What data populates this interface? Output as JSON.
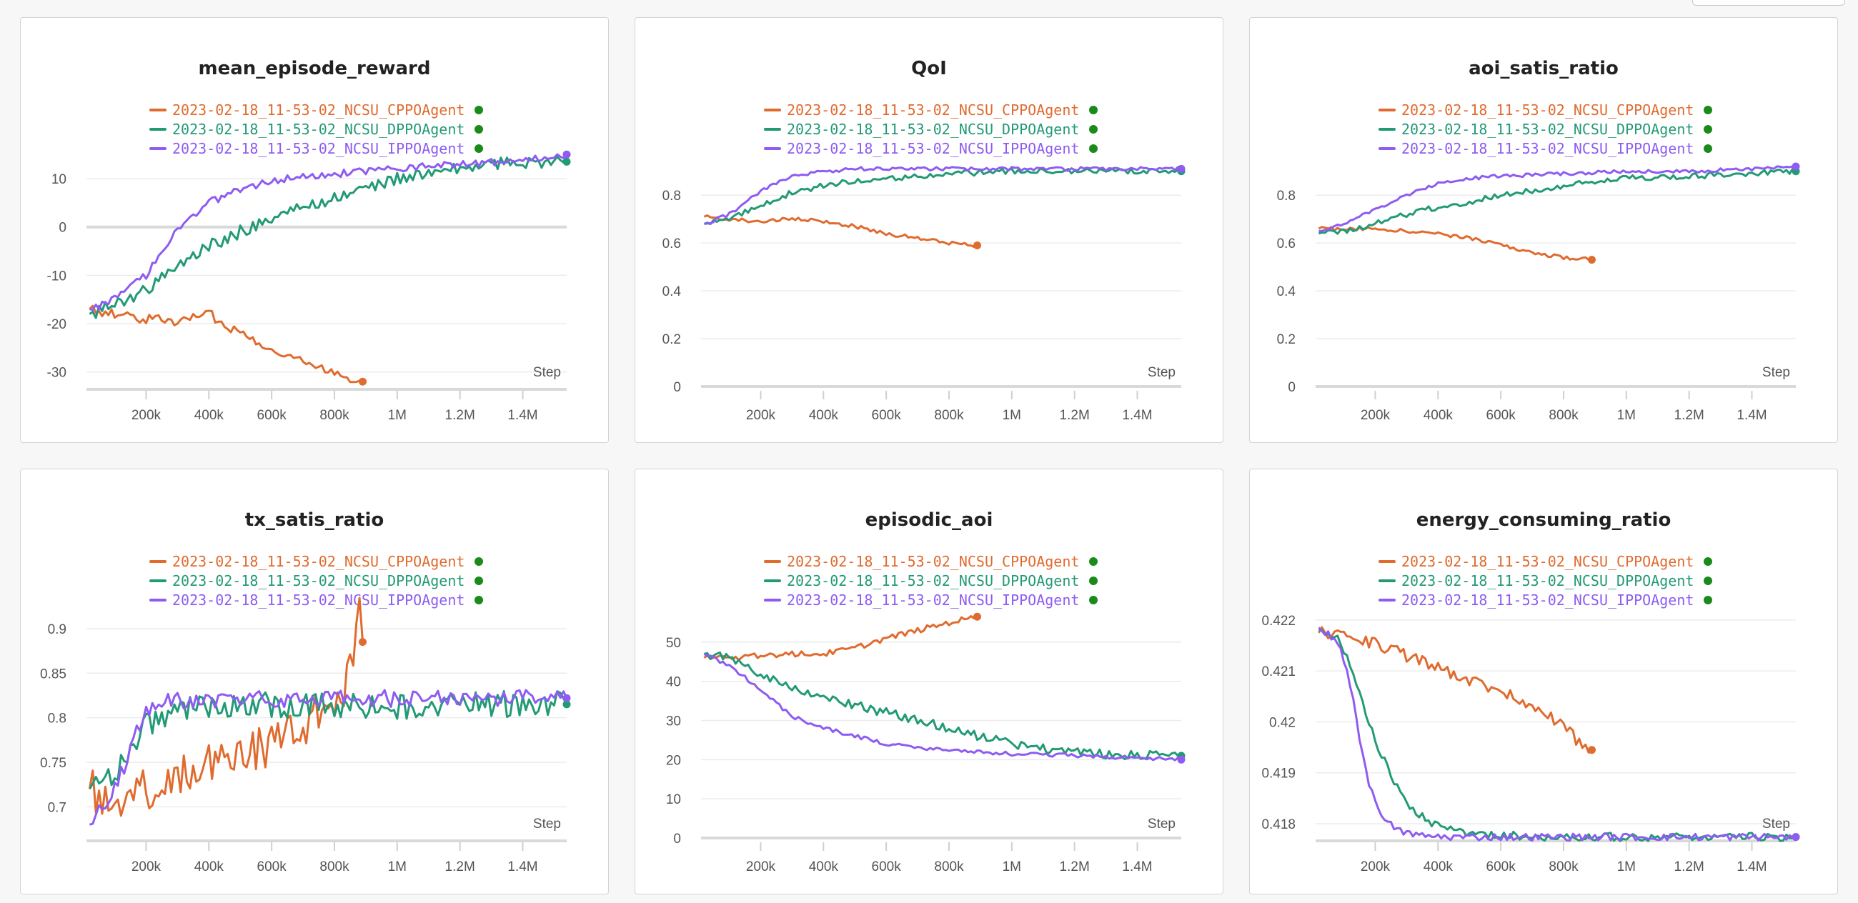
{
  "colors": {
    "cppo": "#e06b2e",
    "dppo": "#239a76",
    "ippo": "#8e5cf2",
    "live_dot": "#1a8a1a"
  },
  "legend": [
    {
      "key": "cppo",
      "label": "2023-02-18_11-53-02_NCSU_CPPOAgent"
    },
    {
      "key": "dppo",
      "label": "2023-02-18_11-53-02_NCSU_DPPOAgent"
    },
    {
      "key": "ippo",
      "label": "2023-02-18_11-53-02_NCSU_IPPOAgent"
    }
  ],
  "x_axis_label": "Step",
  "x_ticks": [
    {
      "v": 200000,
      "label": "200k"
    },
    {
      "v": 400000,
      "label": "400k"
    },
    {
      "v": 600000,
      "label": "600k"
    },
    {
      "v": 800000,
      "label": "800k"
    },
    {
      "v": 1000000,
      "label": "1M"
    },
    {
      "v": 1200000,
      "label": "1.2M"
    },
    {
      "v": 1400000,
      "label": "1.4M"
    }
  ],
  "chart_data": [
    {
      "type": "line",
      "title": "mean_episode_reward",
      "xlim": [
        10000,
        1540000
      ],
      "ylim": [
        -33,
        14
      ],
      "y_ticks": [
        {
          "v": -30,
          "label": "-30"
        },
        {
          "v": -20,
          "label": "-20"
        },
        {
          "v": -10,
          "label": "-10"
        },
        {
          "v": 0,
          "label": "0"
        },
        {
          "v": 10,
          "label": "10"
        }
      ],
      "series": [
        {
          "name": "2023-02-18_11-53-02_NCSU_CPPOAgent",
          "key": "cppo",
          "noise": 1.0,
          "x": [
            20000,
            100000,
            200000,
            300000,
            400000,
            500000,
            600000,
            700000,
            800000,
            890000
          ],
          "y": [
            -17,
            -18,
            -19,
            -19.5,
            -18,
            -22,
            -25,
            -28,
            -30,
            -32
          ]
        },
        {
          "name": "2023-02-18_11-53-02_NCSU_DPPOAgent",
          "key": "dppo",
          "noise": 1.3,
          "x": [
            20000,
            100000,
            200000,
            300000,
            400000,
            500000,
            600000,
            700000,
            800000,
            900000,
            1000000,
            1100000,
            1200000,
            1300000,
            1400000,
            1540000
          ],
          "y": [
            -18,
            -16,
            -13,
            -8,
            -4,
            -1,
            2,
            4,
            6,
            8,
            10,
            11,
            12,
            13,
            13.5,
            13.5
          ]
        },
        {
          "name": "2023-02-18_11-53-02_NCSU_IPPOAgent",
          "key": "ippo",
          "noise": 0.8,
          "x": [
            20000,
            100000,
            200000,
            300000,
            400000,
            500000,
            600000,
            700000,
            800000,
            900000,
            1000000,
            1100000,
            1200000,
            1300000,
            1400000,
            1540000
          ],
          "y": [
            -17,
            -15,
            -10,
            0,
            5,
            8,
            9.5,
            10.5,
            11,
            11.5,
            12,
            12.5,
            13,
            13.5,
            14,
            15
          ]
        }
      ]
    },
    {
      "type": "line",
      "title": "QoI",
      "xlim": [
        10000,
        1540000
      ],
      "ylim": [
        0,
        0.95
      ],
      "y_ticks": [
        {
          "v": 0,
          "label": "0"
        },
        {
          "v": 0.2,
          "label": "0.2"
        },
        {
          "v": 0.4,
          "label": "0.4"
        },
        {
          "v": 0.6,
          "label": "0.6"
        },
        {
          "v": 0.8,
          "label": "0.8"
        }
      ],
      "series": [
        {
          "name": "2023-02-18_11-53-02_NCSU_CPPOAgent",
          "key": "cppo",
          "noise": 0.008,
          "x": [
            20000,
            100000,
            200000,
            300000,
            400000,
            500000,
            600000,
            700000,
            800000,
            890000
          ],
          "y": [
            0.71,
            0.7,
            0.69,
            0.7,
            0.69,
            0.67,
            0.64,
            0.62,
            0.6,
            0.59
          ]
        },
        {
          "name": "2023-02-18_11-53-02_NCSU_DPPOAgent",
          "key": "dppo",
          "noise": 0.012,
          "x": [
            20000,
            100000,
            200000,
            300000,
            400000,
            500000,
            600000,
            700000,
            800000,
            1000000,
            1200000,
            1400000,
            1540000
          ],
          "y": [
            0.68,
            0.7,
            0.76,
            0.81,
            0.84,
            0.86,
            0.87,
            0.88,
            0.89,
            0.9,
            0.9,
            0.9,
            0.9
          ]
        },
        {
          "name": "2023-02-18_11-53-02_NCSU_IPPOAgent",
          "key": "ippo",
          "noise": 0.008,
          "x": [
            20000,
            100000,
            200000,
            300000,
            400000,
            500000,
            600000,
            800000,
            1000000,
            1200000,
            1400000,
            1540000
          ],
          "y": [
            0.68,
            0.72,
            0.82,
            0.88,
            0.9,
            0.91,
            0.91,
            0.91,
            0.91,
            0.91,
            0.91,
            0.91
          ]
        }
      ]
    },
    {
      "type": "line",
      "title": "aoi_satis_ratio",
      "xlim": [
        10000,
        1540000
      ],
      "ylim": [
        0,
        0.95
      ],
      "y_ticks": [
        {
          "v": 0,
          "label": "0"
        },
        {
          "v": 0.2,
          "label": "0.2"
        },
        {
          "v": 0.4,
          "label": "0.4"
        },
        {
          "v": 0.6,
          "label": "0.6"
        },
        {
          "v": 0.8,
          "label": "0.8"
        }
      ],
      "series": [
        {
          "name": "2023-02-18_11-53-02_NCSU_CPPOAgent",
          "key": "cppo",
          "noise": 0.008,
          "x": [
            20000,
            100000,
            200000,
            300000,
            400000,
            500000,
            600000,
            700000,
            800000,
            890000
          ],
          "y": [
            0.66,
            0.66,
            0.66,
            0.65,
            0.64,
            0.62,
            0.59,
            0.56,
            0.54,
            0.53
          ]
        },
        {
          "name": "2023-02-18_11-53-02_NCSU_DPPOAgent",
          "key": "dppo",
          "noise": 0.012,
          "x": [
            20000,
            100000,
            200000,
            300000,
            400000,
            500000,
            600000,
            700000,
            800000,
            900000,
            1000000,
            1200000,
            1400000,
            1540000
          ],
          "y": [
            0.64,
            0.65,
            0.68,
            0.72,
            0.75,
            0.77,
            0.8,
            0.82,
            0.84,
            0.86,
            0.87,
            0.88,
            0.89,
            0.9
          ]
        },
        {
          "name": "2023-02-18_11-53-02_NCSU_IPPOAgent",
          "key": "ippo",
          "noise": 0.007,
          "x": [
            20000,
            100000,
            200000,
            300000,
            400000,
            500000,
            600000,
            800000,
            1000000,
            1200000,
            1400000,
            1540000
          ],
          "y": [
            0.65,
            0.68,
            0.74,
            0.8,
            0.85,
            0.87,
            0.88,
            0.89,
            0.9,
            0.9,
            0.91,
            0.92
          ]
        }
      ]
    },
    {
      "type": "line",
      "title": "tx_satis_ratio",
      "xlim": [
        10000,
        1540000
      ],
      "ylim": [
        0.665,
        0.92
      ],
      "y_ticks": [
        {
          "v": 0.7,
          "label": "0.7"
        },
        {
          "v": 0.75,
          "label": "0.75"
        },
        {
          "v": 0.8,
          "label": "0.8"
        },
        {
          "v": 0.85,
          "label": "0.85"
        },
        {
          "v": 0.9,
          "label": "0.9"
        }
      ],
      "series": [
        {
          "name": "2023-02-18_11-53-02_NCSU_CPPOAgent",
          "key": "cppo",
          "noise": 0.025,
          "x": [
            20000,
            100000,
            200000,
            300000,
            400000,
            500000,
            600000,
            700000,
            800000,
            850000,
            880000,
            890000
          ],
          "y": [
            0.72,
            0.71,
            0.72,
            0.73,
            0.75,
            0.76,
            0.77,
            0.79,
            0.82,
            0.85,
            0.91,
            0.885
          ]
        },
        {
          "name": "2023-02-18_11-53-02_NCSU_DPPOAgent",
          "key": "dppo",
          "noise": 0.015,
          "x": [
            20000,
            100000,
            200000,
            300000,
            400000,
            600000,
            800000,
            1000000,
            1200000,
            1400000,
            1540000
          ],
          "y": [
            0.72,
            0.74,
            0.79,
            0.81,
            0.815,
            0.815,
            0.812,
            0.812,
            0.815,
            0.815,
            0.815
          ]
        },
        {
          "name": "2023-02-18_11-53-02_NCSU_IPPOAgent",
          "key": "ippo",
          "noise": 0.01,
          "x": [
            20000,
            100000,
            200000,
            300000,
            400000,
            600000,
            800000,
            1000000,
            1200000,
            1400000,
            1540000
          ],
          "y": [
            0.68,
            0.72,
            0.81,
            0.82,
            0.82,
            0.822,
            0.822,
            0.822,
            0.822,
            0.822,
            0.822
          ]
        }
      ]
    },
    {
      "type": "line",
      "title": "episodic_aoi",
      "xlim": [
        10000,
        1540000
      ],
      "ylim": [
        0,
        58
      ],
      "y_ticks": [
        {
          "v": 0,
          "label": "0"
        },
        {
          "v": 10,
          "label": "10"
        },
        {
          "v": 20,
          "label": "20"
        },
        {
          "v": 30,
          "label": "30"
        },
        {
          "v": 40,
          "label": "40"
        },
        {
          "v": 50,
          "label": "50"
        }
      ],
      "series": [
        {
          "name": "2023-02-18_11-53-02_NCSU_CPPOAgent",
          "key": "cppo",
          "noise": 0.7,
          "x": [
            20000,
            100000,
            200000,
            300000,
            400000,
            500000,
            600000,
            700000,
            800000,
            890000
          ],
          "y": [
            46,
            46,
            46.5,
            47,
            47,
            48.5,
            51,
            53,
            55,
            56.5
          ]
        },
        {
          "name": "2023-02-18_11-53-02_NCSU_DPPOAgent",
          "key": "dppo",
          "noise": 1.2,
          "x": [
            20000,
            100000,
            200000,
            300000,
            400000,
            500000,
            600000,
            700000,
            800000,
            900000,
            1000000,
            1200000,
            1400000,
            1540000
          ],
          "y": [
            47,
            46,
            42,
            38,
            36,
            34,
            32,
            30,
            28,
            26,
            24,
            22,
            21,
            21
          ]
        },
        {
          "name": "2023-02-18_11-53-02_NCSU_IPPOAgent",
          "key": "ippo",
          "noise": 0.5,
          "x": [
            20000,
            100000,
            200000,
            300000,
            400000,
            500000,
            600000,
            700000,
            800000,
            1000000,
            1200000,
            1400000,
            1540000
          ],
          "y": [
            47,
            44,
            38,
            31,
            28,
            26,
            24,
            23,
            22.5,
            21.5,
            21,
            20.5,
            20
          ]
        }
      ]
    },
    {
      "type": "line",
      "title": "energy_consuming_ratio",
      "xlim": [
        10000,
        1540000
      ],
      "ylim": [
        0.41772,
        0.42218
      ],
      "y_ticks": [
        {
          "v": 0.418,
          "label": "0.418"
        },
        {
          "v": 0.419,
          "label": "0.419"
        },
        {
          "v": 0.42,
          "label": "0.42"
        },
        {
          "v": 0.421,
          "label": "0.421"
        },
        {
          "v": 0.422,
          "label": "0.422"
        }
      ],
      "series": [
        {
          "name": "2023-02-18_11-53-02_NCSU_CPPOAgent",
          "key": "cppo",
          "noise": 0.00012,
          "x": [
            20000,
            100000,
            200000,
            300000,
            400000,
            500000,
            600000,
            700000,
            780000,
            850000,
            890000
          ],
          "y": [
            0.42175,
            0.4217,
            0.42155,
            0.4213,
            0.42105,
            0.4208,
            0.4206,
            0.42035,
            0.42,
            0.4196,
            0.41945
          ]
        },
        {
          "name": "2023-02-18_11-53-02_NCSU_DPPOAgent",
          "key": "dppo",
          "noise": 8e-05,
          "x": [
            20000,
            80000,
            130000,
            170000,
            210000,
            260000,
            320000,
            400000,
            500000,
            700000,
            1000000,
            1540000
          ],
          "y": [
            0.4218,
            0.42165,
            0.42095,
            0.4202,
            0.4195,
            0.4188,
            0.41825,
            0.41795,
            0.4178,
            0.41775,
            0.41774,
            0.41774
          ]
        },
        {
          "name": "2023-02-18_11-53-02_NCSU_IPPOAgent",
          "key": "ippo",
          "noise": 7e-05,
          "x": [
            20000,
            80000,
            120000,
            150000,
            180000,
            220000,
            280000,
            350000,
            450000,
            700000,
            1000000,
            1540000
          ],
          "y": [
            0.42185,
            0.4216,
            0.42075,
            0.4197,
            0.4188,
            0.4181,
            0.41785,
            0.41776,
            0.41774,
            0.41774,
            0.41774,
            0.41774
          ]
        }
      ]
    }
  ]
}
